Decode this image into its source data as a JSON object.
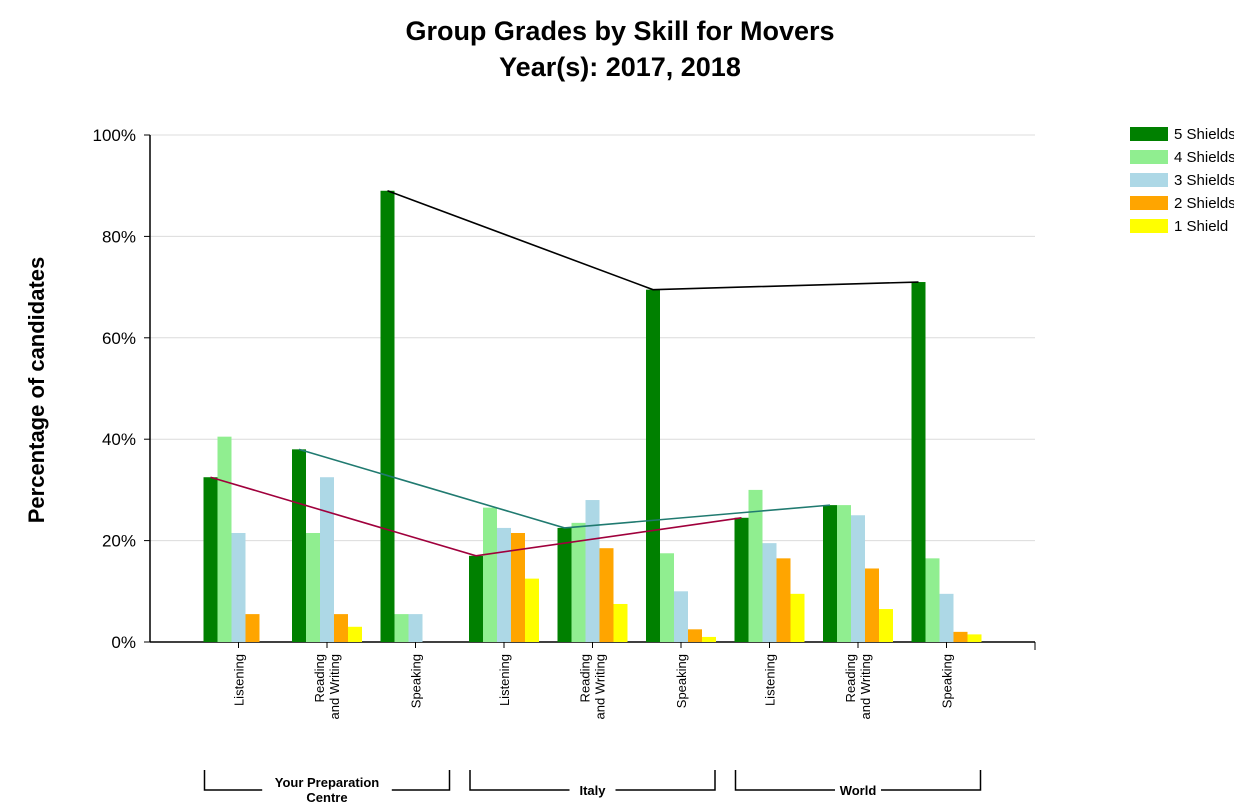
{
  "chart_data": {
    "type": "bar",
    "title": "Group Grades by Skill for Movers",
    "subtitle": "Year(s): 2017, 2018",
    "y_label": "Percentage of candidates",
    "groups": [
      "Your Preparation Centre",
      "Italy",
      "World"
    ],
    "categories": [
      "Listening",
      "Reading and Writing",
      "Speaking",
      "Listening",
      "Reading and Writing",
      "Speaking",
      "Listening",
      "Reading and Writing",
      "Speaking"
    ],
    "series": [
      {
        "name": "5 Shields",
        "color": "#008000",
        "values": [
          32.5,
          38,
          89,
          17,
          22.5,
          69.5,
          24.5,
          27,
          71
        ]
      },
      {
        "name": "4 Shields",
        "color": "#90ee90",
        "values": [
          40.5,
          21.5,
          5.5,
          26.5,
          23.5,
          17.5,
          30,
          27,
          16.5
        ]
      },
      {
        "name": "3 Shields",
        "color": "#add8e6",
        "values": [
          21.5,
          32.5,
          5.5,
          22.5,
          28,
          10,
          19.5,
          25,
          9.5
        ]
      },
      {
        "name": "2 Shields",
        "color": "#ffa500",
        "values": [
          5.5,
          5.5,
          0,
          21.5,
          18.5,
          2.5,
          16.5,
          14.5,
          2
        ]
      },
      {
        "name": "1 Shield",
        "color": "#ffff00",
        "values": [
          0,
          3,
          0,
          12.5,
          7.5,
          1,
          9.5,
          6.5,
          1.5
        ]
      }
    ],
    "connector_colors": [
      "#a0003c",
      "#207a70",
      "#000000"
    ],
    "ylim": [
      0,
      100
    ],
    "yticks": [
      {
        "value": 0,
        "label": "0%"
      },
      {
        "value": 20,
        "label": "20%"
      },
      {
        "value": 40,
        "label": "40%"
      },
      {
        "value": 60,
        "label": "60%"
      },
      {
        "value": 80,
        "label": "80%"
      },
      {
        "value": 100,
        "label": "100%"
      }
    ],
    "grid": true,
    "legend": "top-right"
  }
}
